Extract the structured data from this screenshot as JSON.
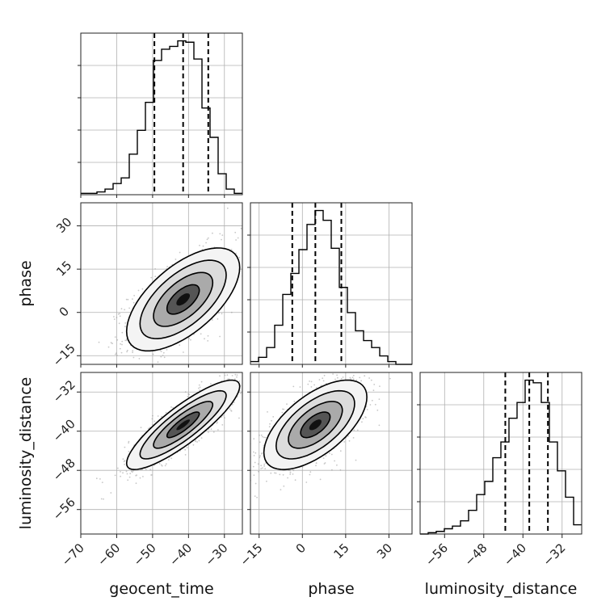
{
  "chart_data": {
    "type": "corner",
    "parameters": [
      {
        "name": "geocent_time",
        "range": [
          -70,
          -25
        ],
        "ticks": [
          -70,
          -60,
          -50,
          -40,
          -30
        ],
        "quantiles": [
          -49.5,
          -41.5,
          -34.5
        ]
      },
      {
        "name": "phase",
        "range": [
          -18,
          38
        ],
        "ticks": [
          -15,
          0,
          15,
          30
        ],
        "quantiles": [
          -3.5,
          4.5,
          13.5
        ]
      },
      {
        "name": "luminosity_distance",
        "range": [
          -61,
          -28
        ],
        "ticks": [
          -56,
          -48,
          -40,
          -32
        ],
        "quantiles": [
          -43.6,
          -38.7,
          -34.9
        ]
      }
    ],
    "histograms": [
      {
        "param": "geocent_time",
        "edges": [
          -70,
          -67.75,
          -65.5,
          -63.25,
          -61,
          -58.75,
          -56.5,
          -54.25,
          -52,
          -49.75,
          -47.5,
          -45.25,
          -43,
          -40.75,
          -38.5,
          -36.25,
          -34,
          -31.75,
          -29.5,
          -27.25,
          -25
        ],
        "counts": [
          1,
          1,
          2,
          4,
          8,
          12,
          29,
          46,
          66,
          96,
          104,
          106,
          110,
          109,
          97,
          62,
          41,
          15,
          4,
          1
        ]
      },
      {
        "param": "phase",
        "edges": [
          -18,
          -15.2,
          -12.4,
          -9.6,
          -6.8,
          -4,
          -1.2,
          1.6,
          4.4,
          7.2,
          10,
          12.8,
          15.6,
          18.4,
          21.2,
          24,
          26.8,
          29.6,
          32.4,
          35.2,
          38
        ],
        "counts": [
          2,
          5,
          12,
          28,
          50,
          65,
          82,
          100,
          110,
          103,
          83,
          55,
          37,
          24,
          17,
          12,
          6,
          2,
          0,
          0
        ]
      },
      {
        "param": "luminosity_distance",
        "edges": [
          -61,
          -59.35,
          -57.7,
          -56.05,
          -54.4,
          -52.75,
          -51.1,
          -49.45,
          -47.8,
          -46.15,
          -44.5,
          -42.85,
          -41.2,
          -39.55,
          -37.9,
          -36.25,
          -34.6,
          -32.95,
          -31.3,
          -29.65,
          -28
        ],
        "counts": [
          0,
          1,
          2,
          4,
          6,
          10,
          18,
          30,
          40,
          58,
          70,
          88,
          100,
          117,
          115,
          100,
          70,
          48,
          28,
          7
        ]
      }
    ],
    "joint": [
      {
        "x": "geocent_time",
        "y": "phase",
        "correlation": 0.62
      },
      {
        "x": "geocent_time",
        "y": "luminosity_distance",
        "correlation": 0.86
      },
      {
        "x": "phase",
        "y": "luminosity_distance",
        "correlation": 0.62
      }
    ],
    "grid": true,
    "colors": {
      "line": "#000000",
      "scatter": "#9a9a9a",
      "grid": "#b0b0b0"
    }
  }
}
